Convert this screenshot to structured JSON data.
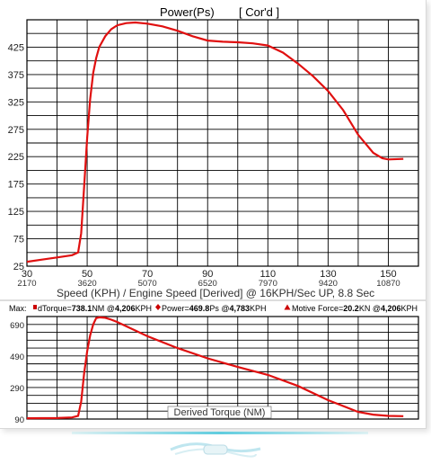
{
  "colors": {
    "curve": "#e01010",
    "grid": "#000000",
    "axis_text": "#222222",
    "marker": "#cc0000"
  },
  "chart_data": [
    {
      "type": "line",
      "title": "Power(Ps)",
      "title_tag": "[ Cor'd ]",
      "xlabel": "Speed (KPH) / Engine Speed [Derived] @ 16KPH/Sec UP, 8.8 Sec",
      "xlim": [
        30,
        160
      ],
      "ylim": [
        25,
        475
      ],
      "x_ticks": [
        30,
        50,
        70,
        90,
        110,
        130,
        150
      ],
      "x_tick_labels": [
        "30",
        "50",
        "70",
        "90",
        "110",
        "130",
        "150"
      ],
      "x_rpm_labels": [
        "2170",
        "3620",
        "5070",
        "6520",
        "7970",
        "9420",
        "10870"
      ],
      "y_ticks": [
        25,
        75,
        125,
        175,
        225,
        275,
        325,
        375,
        425
      ],
      "y_tick_labels": [
        "25",
        "75",
        "125",
        "175",
        "225",
        "275",
        "325",
        "375",
        "425"
      ],
      "grid": true,
      "series": [
        {
          "x": [
            30,
            35,
            40,
            45,
            47,
            48,
            49,
            50,
            51,
            52,
            53,
            54,
            56,
            58,
            60,
            63,
            66,
            70,
            75,
            80,
            85,
            90,
            95,
            100,
            105,
            110,
            115,
            120,
            125,
            130,
            135,
            140,
            145,
            148,
            150,
            155
          ],
          "y": [
            33,
            37,
            41,
            45,
            50,
            85,
            170,
            260,
            330,
            378,
            405,
            425,
            445,
            458,
            465,
            469,
            470,
            468,
            463,
            455,
            445,
            437,
            435,
            434,
            432,
            428,
            415,
            395,
            372,
            345,
            310,
            265,
            232,
            222,
            220,
            221
          ]
        }
      ]
    },
    {
      "type": "line",
      "title": "Derived Torque (NM)",
      "xlim": [
        30,
        160
      ],
      "ylim": [
        90,
        740
      ],
      "y_ticks": [
        90,
        290,
        490,
        690
      ],
      "y_tick_labels": [
        "90",
        "290",
        "490",
        "690"
      ],
      "grid": true,
      "series": [
        {
          "x": [
            30,
            40,
            45,
            47,
            48,
            49,
            50,
            51,
            52,
            53,
            54,
            56,
            58,
            60,
            65,
            70,
            80,
            90,
            100,
            110,
            120,
            130,
            140,
            145,
            150,
            155
          ],
          "y": [
            95,
            96,
            100,
            110,
            200,
            380,
            520,
            620,
            690,
            730,
            735,
            732,
            720,
            705,
            660,
            615,
            540,
            475,
            420,
            370,
            300,
            210,
            135,
            118,
            110,
            108
          ]
        }
      ]
    }
  ],
  "max_bar": {
    "label": "Max:",
    "items": [
      {
        "name": "dTorque=",
        "value": "738.1",
        "unit": "NM @",
        "at": "4,206",
        "at_unit": "KPH"
      },
      {
        "name": "Power=",
        "value": "469.8",
        "unit": "Ps @",
        "at": "4,783",
        "at_unit": "KPH"
      },
      {
        "name": "Motive Force=",
        "value": "20.2",
        "unit": "KN @",
        "at": "4,206",
        "at_unit": "KPH"
      }
    ]
  }
}
